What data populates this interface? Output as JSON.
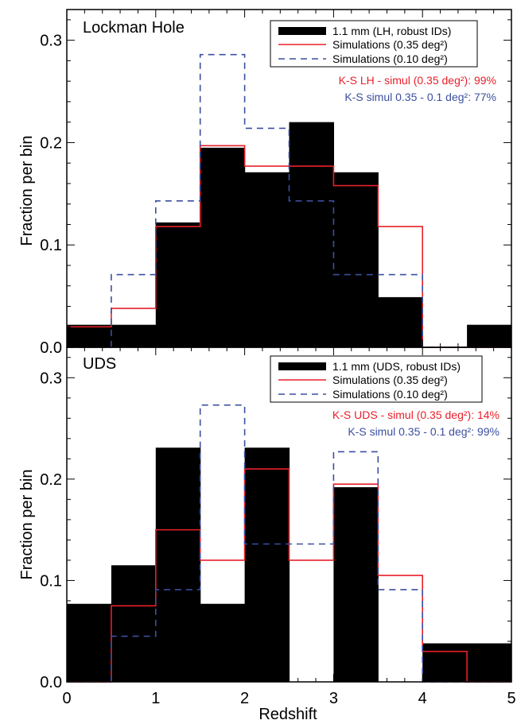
{
  "chart_data": [
    {
      "type": "bar",
      "panel_label": "Lockman Hole",
      "xlabel": "",
      "ylabel": "Fraction per bin",
      "xlim": [
        0,
        5
      ],
      "ylim": [
        0,
        0.33
      ],
      "x_ticks": [
        "0",
        "1",
        "2",
        "3",
        "4",
        "5"
      ],
      "y_ticks": [
        {
          "value": 0.0,
          "label": "0.0"
        },
        {
          "value": 0.1,
          "label": "0.1"
        },
        {
          "value": 0.2,
          "label": "0.2"
        },
        {
          "value": 0.3,
          "label": "0.3"
        }
      ],
      "bin_edges": [
        0,
        0.5,
        1.0,
        1.5,
        2.0,
        2.5,
        3.0,
        3.5,
        4.0,
        4.5,
        5.0
      ],
      "series": [
        {
          "name": "1.1 mm (LH, robust IDs)",
          "style": "filled",
          "color": "#000000",
          "values": [
            0.022,
            0.022,
            0.122,
            0.195,
            0.171,
            0.22,
            0.171,
            0.049,
            0.0,
            0.022
          ]
        },
        {
          "name": "Simulations (0.35 deg²)",
          "style": "solid",
          "color": "#e8202a",
          "values": [
            0.02,
            0.038,
            0.118,
            0.197,
            0.177,
            0.177,
            0.158,
            0.118,
            0.0,
            0.0
          ]
        },
        {
          "name": "Simulations (0.10 deg²)",
          "style": "dashed",
          "color": "#3b4fa0",
          "values": [
            0.0,
            0.071,
            0.143,
            0.286,
            0.214,
            0.143,
            0.071,
            0.071,
            0.0,
            0.0
          ]
        }
      ],
      "annotations": [
        {
          "text": "K-S LH - simul (0.35 deg²): 99%",
          "color": "#e8202a"
        },
        {
          "text": "K-S simul 0.35 - 0.1 deg²: 77%",
          "color": "#3b4fa0"
        }
      ]
    },
    {
      "type": "bar",
      "panel_label": "UDS",
      "xlabel": "Redshift",
      "ylabel": "Fraction per bin",
      "xlim": [
        0,
        5
      ],
      "ylim": [
        0,
        0.33
      ],
      "x_ticks": [
        "0",
        "1",
        "2",
        "3",
        "4",
        "5"
      ],
      "y_ticks": [
        {
          "value": 0.0,
          "label": "0.0"
        },
        {
          "value": 0.1,
          "label": "0.1"
        },
        {
          "value": 0.2,
          "label": "0.2"
        },
        {
          "value": 0.3,
          "label": "0.3"
        }
      ],
      "bin_edges": [
        0,
        0.5,
        1.0,
        1.5,
        2.0,
        2.5,
        3.0,
        3.5,
        4.0,
        4.5,
        5.0
      ],
      "series": [
        {
          "name": "1.1 mm (UDS, robust IDs)",
          "style": "filled",
          "color": "#000000",
          "values": [
            0.077,
            0.115,
            0.231,
            0.077,
            0.231,
            0.0,
            0.192,
            0.0,
            0.038,
            0.038
          ]
        },
        {
          "name": "Simulations (0.35 deg²)",
          "style": "solid",
          "color": "#e8202a",
          "values": [
            0.0,
            0.075,
            0.15,
            0.12,
            0.21,
            0.12,
            0.195,
            0.105,
            0.03,
            0.0
          ]
        },
        {
          "name": "Simulations (0.10 deg²)",
          "style": "dashed",
          "color": "#3b4fa0",
          "values": [
            0.0,
            0.045,
            0.091,
            0.273,
            0.136,
            0.136,
            0.227,
            0.091,
            0.0,
            0.0
          ]
        }
      ],
      "annotations": [
        {
          "text": "K-S UDS - simul (0.35 deg²): 14%",
          "color": "#e8202a"
        },
        {
          "text": "K-S simul 0.35 - 0.1 deg²: 99%",
          "color": "#3b4fa0"
        }
      ]
    }
  ]
}
